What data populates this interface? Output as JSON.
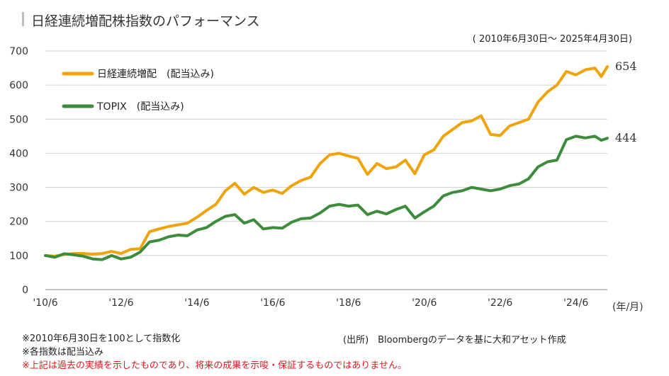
{
  "title": "日経連続増配株指数のパフォーマンス",
  "period": "( 2010年6月30日～ 2025年4月30日)",
  "notes": [
    "※2010年6月30日を100として指数化",
    "※各指数は配当込み"
  ],
  "warning": "※上記は過去の実績を示したものであり、将来の成果を示唆・保証するものではありません。",
  "source": "(出所)　Bloombergのデータを基に大和アセット作成",
  "chart_data": {
    "type": "line",
    "xlabel": "(年/月)",
    "ylabel": "",
    "ylim": [
      0,
      700
    ],
    "yticks": [
      0,
      100,
      200,
      300,
      400,
      500,
      600,
      700
    ],
    "xticks": [
      {
        "label": "'10/6",
        "t": 2010.5
      },
      {
        "label": "'12/6",
        "t": 2012.5
      },
      {
        "label": "'14/6",
        "t": 2014.5
      },
      {
        "label": "'16/6",
        "t": 2016.5
      },
      {
        "label": "'18/6",
        "t": 2018.5
      },
      {
        "label": "'20/6",
        "t": 2020.5
      },
      {
        "label": "'22/6",
        "t": 2022.5
      },
      {
        "label": "'24/6",
        "t": 2024.5
      }
    ],
    "xlim": [
      2010.5,
      2025.33
    ],
    "grid": true,
    "legend_position": "top-left",
    "series": [
      {
        "name": "日経連続増配　(配当込み)",
        "color": "#f0a30a",
        "end_label": "654",
        "points": [
          [
            2010.5,
            100
          ],
          [
            2010.75,
            98
          ],
          [
            2011.0,
            103
          ],
          [
            2011.25,
            106
          ],
          [
            2011.5,
            106
          ],
          [
            2011.75,
            104
          ],
          [
            2012.0,
            106
          ],
          [
            2012.25,
            112
          ],
          [
            2012.5,
            106
          ],
          [
            2012.75,
            118
          ],
          [
            2013.0,
            120
          ],
          [
            2013.25,
            170
          ],
          [
            2013.5,
            178
          ],
          [
            2013.75,
            185
          ],
          [
            2014.0,
            190
          ],
          [
            2014.25,
            195
          ],
          [
            2014.5,
            212
          ],
          [
            2014.75,
            232
          ],
          [
            2015.0,
            250
          ],
          [
            2015.25,
            290
          ],
          [
            2015.5,
            312
          ],
          [
            2015.75,
            280
          ],
          [
            2016.0,
            300
          ],
          [
            2016.25,
            285
          ],
          [
            2016.5,
            292
          ],
          [
            2016.75,
            282
          ],
          [
            2017.0,
            305
          ],
          [
            2017.25,
            320
          ],
          [
            2017.5,
            330
          ],
          [
            2017.75,
            370
          ],
          [
            2018.0,
            395
          ],
          [
            2018.25,
            400
          ],
          [
            2018.5,
            392
          ],
          [
            2018.75,
            385
          ],
          [
            2019.0,
            338
          ],
          [
            2019.25,
            370
          ],
          [
            2019.5,
            355
          ],
          [
            2019.75,
            360
          ],
          [
            2020.0,
            380
          ],
          [
            2020.25,
            340
          ],
          [
            2020.5,
            395
          ],
          [
            2020.75,
            410
          ],
          [
            2021.0,
            450
          ],
          [
            2021.25,
            470
          ],
          [
            2021.5,
            490
          ],
          [
            2021.75,
            495
          ],
          [
            2022.0,
            510
          ],
          [
            2022.25,
            455
          ],
          [
            2022.5,
            452
          ],
          [
            2022.75,
            480
          ],
          [
            2023.0,
            490
          ],
          [
            2023.25,
            500
          ],
          [
            2023.5,
            550
          ],
          [
            2023.75,
            580
          ],
          [
            2024.0,
            600
          ],
          [
            2024.25,
            640
          ],
          [
            2024.5,
            630
          ],
          [
            2024.75,
            645
          ],
          [
            2025.0,
            650
          ],
          [
            2025.17,
            625
          ],
          [
            2025.33,
            654
          ]
        ]
      },
      {
        "name": "TOPIX　(配当込み)",
        "color": "#3c8c3c",
        "end_label": "444",
        "points": [
          [
            2010.5,
            100
          ],
          [
            2010.75,
            95
          ],
          [
            2011.0,
            105
          ],
          [
            2011.25,
            102
          ],
          [
            2011.5,
            98
          ],
          [
            2011.75,
            90
          ],
          [
            2012.0,
            88
          ],
          [
            2012.25,
            100
          ],
          [
            2012.5,
            90
          ],
          [
            2012.75,
            95
          ],
          [
            2013.0,
            110
          ],
          [
            2013.25,
            140
          ],
          [
            2013.5,
            145
          ],
          [
            2013.75,
            155
          ],
          [
            2014.0,
            160
          ],
          [
            2014.25,
            158
          ],
          [
            2014.5,
            175
          ],
          [
            2014.75,
            182
          ],
          [
            2015.0,
            200
          ],
          [
            2015.25,
            215
          ],
          [
            2015.5,
            220
          ],
          [
            2015.75,
            195
          ],
          [
            2016.0,
            205
          ],
          [
            2016.25,
            178
          ],
          [
            2016.5,
            182
          ],
          [
            2016.75,
            180
          ],
          [
            2017.0,
            198
          ],
          [
            2017.25,
            208
          ],
          [
            2017.5,
            210
          ],
          [
            2017.75,
            225
          ],
          [
            2018.0,
            245
          ],
          [
            2018.25,
            250
          ],
          [
            2018.5,
            245
          ],
          [
            2018.75,
            248
          ],
          [
            2019.0,
            220
          ],
          [
            2019.25,
            230
          ],
          [
            2019.5,
            222
          ],
          [
            2019.75,
            235
          ],
          [
            2020.0,
            245
          ],
          [
            2020.25,
            210
          ],
          [
            2020.5,
            228
          ],
          [
            2020.75,
            245
          ],
          [
            2021.0,
            275
          ],
          [
            2021.25,
            285
          ],
          [
            2021.5,
            290
          ],
          [
            2021.75,
            300
          ],
          [
            2022.0,
            295
          ],
          [
            2022.25,
            290
          ],
          [
            2022.5,
            295
          ],
          [
            2022.75,
            305
          ],
          [
            2023.0,
            310
          ],
          [
            2023.25,
            325
          ],
          [
            2023.5,
            360
          ],
          [
            2023.75,
            375
          ],
          [
            2024.0,
            380
          ],
          [
            2024.25,
            440
          ],
          [
            2024.5,
            450
          ],
          [
            2024.75,
            445
          ],
          [
            2025.0,
            450
          ],
          [
            2025.17,
            438
          ],
          [
            2025.33,
            444
          ]
        ]
      }
    ]
  }
}
